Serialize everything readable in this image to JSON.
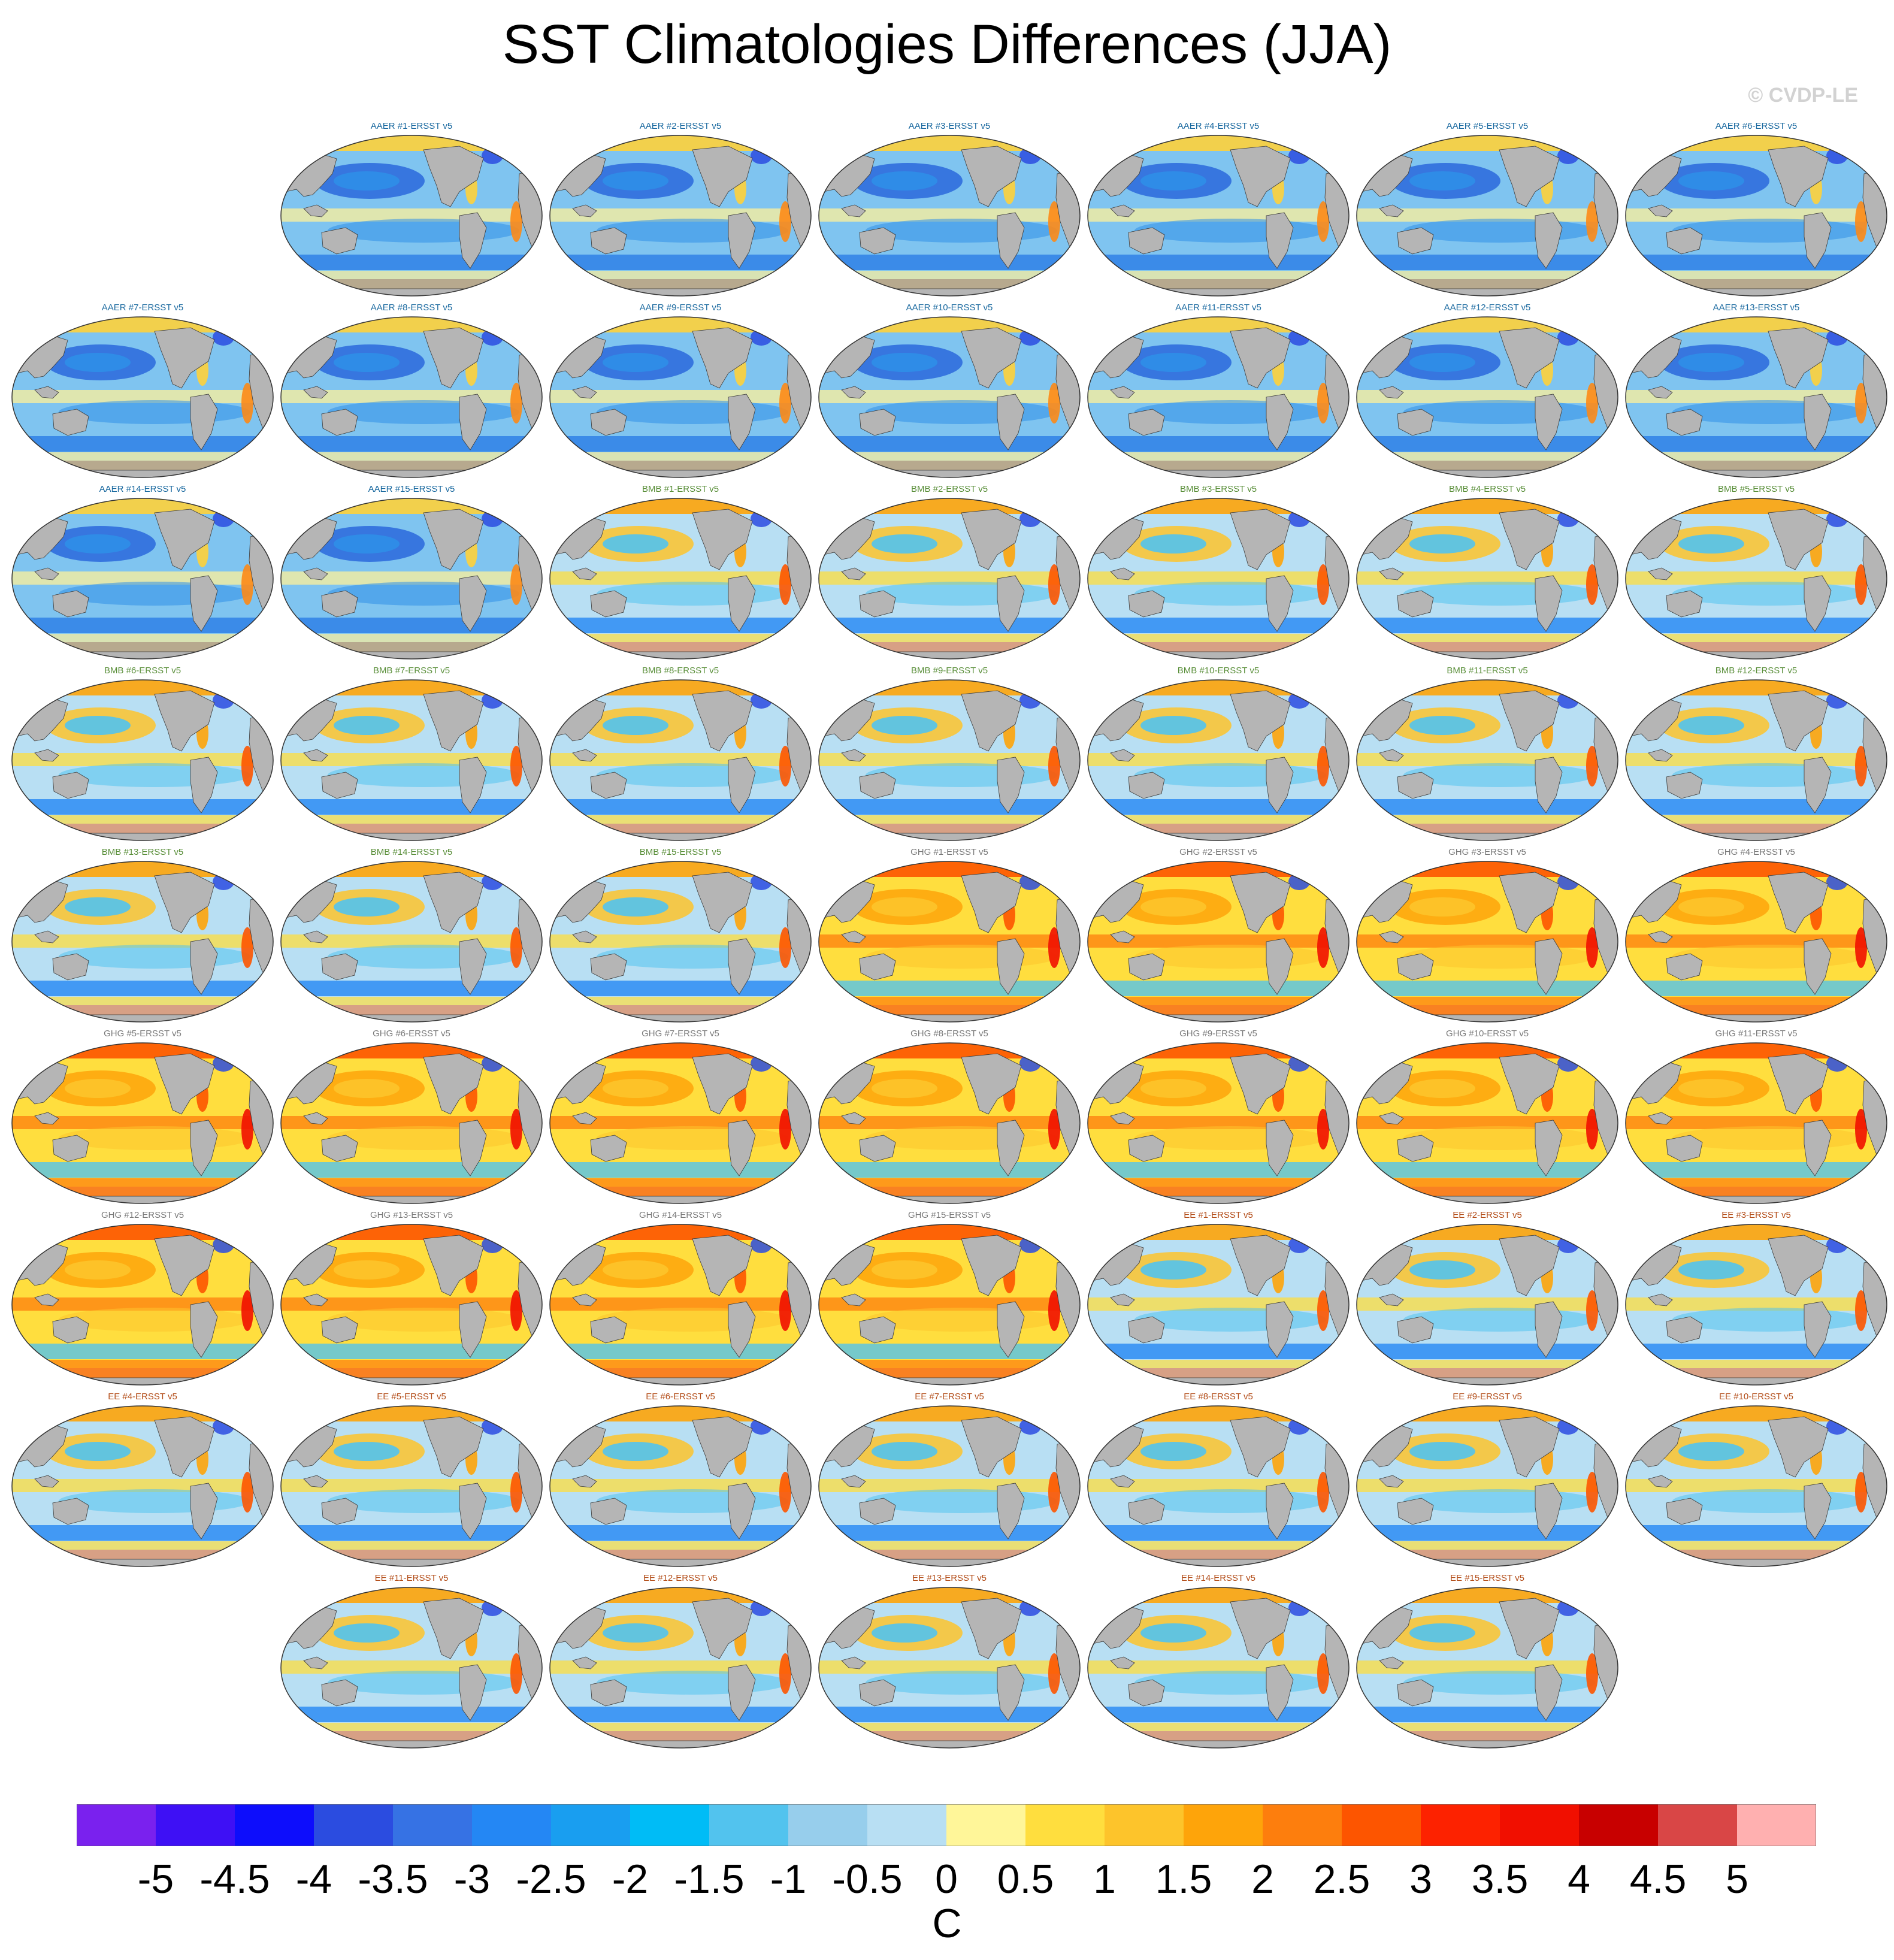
{
  "title": "SST Climatologies Differences (JJA)",
  "watermark": "© CVDP-LE",
  "colorbar": {
    "unit": "C",
    "labels": [
      "-5",
      "-4.5",
      "-4",
      "-3.5",
      "-3",
      "-2.5",
      "-2",
      "-1.5",
      "-1",
      "-0.5",
      "0",
      "0.5",
      "1",
      "1.5",
      "2",
      "2.5",
      "3",
      "3.5",
      "4",
      "4.5",
      "5"
    ],
    "colors": [
      "#7a21ee",
      "#3e10f5",
      "#0d0dfc",
      "#2b4ce0",
      "#3672e4",
      "#2487f4",
      "#199ef0",
      "#00bcf6",
      "#52c3ee",
      "#97ceec",
      "#b8dff3",
      "#fff699",
      "#ffde3e",
      "#fdc42b",
      "#fea40a",
      "#fd7e0d",
      "#fd5500",
      "#fd2200",
      "#f10f00",
      "#c80000",
      "#d94646",
      "#ffb0b0"
    ]
  },
  "groups": {
    "AAER": {
      "color": "#1b6aa0",
      "tint": "cool"
    },
    "BMB": {
      "color": "#5a8f3a",
      "tint": "mixed"
    },
    "GHG": {
      "color": "#7a7a7a",
      "tint": "warm"
    },
    "EE": {
      "color": "#b34d19",
      "tint": "mixed"
    }
  },
  "panels": [
    {
      "label": "AAER #1-ERSST v5",
      "group": "AAER"
    },
    {
      "label": "AAER #2-ERSST v5",
      "group": "AAER"
    },
    {
      "label": "AAER #3-ERSST v5",
      "group": "AAER"
    },
    {
      "label": "AAER #4-ERSST v5",
      "group": "AAER"
    },
    {
      "label": "AAER #5-ERSST v5",
      "group": "AAER"
    },
    {
      "label": "AAER #6-ERSST v5",
      "group": "AAER"
    },
    {
      "label": "AAER #7-ERSST v5",
      "group": "AAER"
    },
    {
      "label": "AAER #8-ERSST v5",
      "group": "AAER"
    },
    {
      "label": "AAER #9-ERSST v5",
      "group": "AAER"
    },
    {
      "label": "AAER #10-ERSST v5",
      "group": "AAER"
    },
    {
      "label": "AAER #11-ERSST v5",
      "group": "AAER"
    },
    {
      "label": "AAER #12-ERSST v5",
      "group": "AAER"
    },
    {
      "label": "AAER #13-ERSST v5",
      "group": "AAER"
    },
    {
      "label": "AAER #14-ERSST v5",
      "group": "AAER"
    },
    {
      "label": "AAER #15-ERSST v5",
      "group": "AAER"
    },
    {
      "label": "BMB #1-ERSST v5",
      "group": "BMB"
    },
    {
      "label": "BMB #2-ERSST v5",
      "group": "BMB"
    },
    {
      "label": "BMB #3-ERSST v5",
      "group": "BMB"
    },
    {
      "label": "BMB #4-ERSST v5",
      "group": "BMB"
    },
    {
      "label": "BMB #5-ERSST v5",
      "group": "BMB"
    },
    {
      "label": "BMB #6-ERSST v5",
      "group": "BMB"
    },
    {
      "label": "BMB #7-ERSST v5",
      "group": "BMB"
    },
    {
      "label": "BMB #8-ERSST v5",
      "group": "BMB"
    },
    {
      "label": "BMB #9-ERSST v5",
      "group": "BMB"
    },
    {
      "label": "BMB #10-ERSST v5",
      "group": "BMB"
    },
    {
      "label": "BMB #11-ERSST v5",
      "group": "BMB"
    },
    {
      "label": "BMB #12-ERSST v5",
      "group": "BMB"
    },
    {
      "label": "BMB #13-ERSST v5",
      "group": "BMB"
    },
    {
      "label": "BMB #14-ERSST v5",
      "group": "BMB"
    },
    {
      "label": "BMB #15-ERSST v5",
      "group": "BMB"
    },
    {
      "label": "GHG #1-ERSST v5",
      "group": "GHG"
    },
    {
      "label": "GHG #2-ERSST v5",
      "group": "GHG"
    },
    {
      "label": "GHG #3-ERSST v5",
      "group": "GHG"
    },
    {
      "label": "GHG #4-ERSST v5",
      "group": "GHG"
    },
    {
      "label": "GHG #5-ERSST v5",
      "group": "GHG"
    },
    {
      "label": "GHG #6-ERSST v5",
      "group": "GHG"
    },
    {
      "label": "GHG #7-ERSST v5",
      "group": "GHG"
    },
    {
      "label": "GHG #8-ERSST v5",
      "group": "GHG"
    },
    {
      "label": "GHG #9-ERSST v5",
      "group": "GHG"
    },
    {
      "label": "GHG #10-ERSST v5",
      "group": "GHG"
    },
    {
      "label": "GHG #11-ERSST v5",
      "group": "GHG"
    },
    {
      "label": "GHG #12-ERSST v5",
      "group": "GHG"
    },
    {
      "label": "GHG #13-ERSST v5",
      "group": "GHG"
    },
    {
      "label": "GHG #14-ERSST v5",
      "group": "GHG"
    },
    {
      "label": "GHG #15-ERSST v5",
      "group": "GHG"
    },
    {
      "label": "EE #1-ERSST v5",
      "group": "EE"
    },
    {
      "label": "EE #2-ERSST v5",
      "group": "EE"
    },
    {
      "label": "EE #3-ERSST v5",
      "group": "EE"
    },
    {
      "label": "EE #4-ERSST v5",
      "group": "EE"
    },
    {
      "label": "EE #5-ERSST v5",
      "group": "EE"
    },
    {
      "label": "EE #6-ERSST v5",
      "group": "EE"
    },
    {
      "label": "EE #7-ERSST v5",
      "group": "EE"
    },
    {
      "label": "EE #8-ERSST v5",
      "group": "EE"
    },
    {
      "label": "EE #9-ERSST v5",
      "group": "EE"
    },
    {
      "label": "EE #10-ERSST v5",
      "group": "EE"
    },
    {
      "label": "EE #11-ERSST v5",
      "group": "EE"
    },
    {
      "label": "EE #12-ERSST v5",
      "group": "EE"
    },
    {
      "label": "EE #13-ERSST v5",
      "group": "EE"
    },
    {
      "label": "EE #14-ERSST v5",
      "group": "EE"
    },
    {
      "label": "EE #15-ERSST v5",
      "group": "EE"
    }
  ]
}
